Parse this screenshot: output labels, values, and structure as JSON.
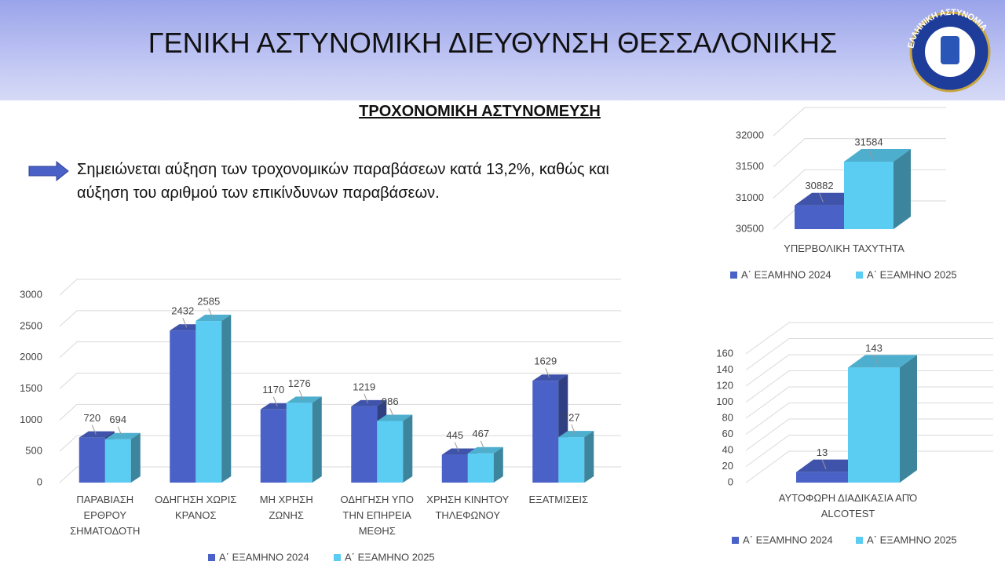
{
  "header": {
    "title": "ΓΕΝΙΚΗ ΑΣΤΥΝΟΜΙΚΗ ΔΙΕΥΘΥΝΣΗ ΘΕΣΣΑΛΟΝΙΚΗΣ"
  },
  "logo": {
    "text": "ΕΛΛΗΝΙΚΗ ΑΣΤΥΝΟΜΙΑ"
  },
  "subtitle": "ΤΡΟΧΟΝΟΜΙΚΗ ΑΣΤΥΝΟΜΕΥΣΗ",
  "bullet": "Σημειώνεται αύξηση των τροχονομικών παραβάσεων κατά 13,2%, καθώς και αύξηση του αριθμού των επικίνδυνων παραβάσεων.",
  "chart_data": [
    {
      "type": "bar",
      "categories": [
        "ΠΑΡΑΒΙΑΣΗ ΕΡΘΡΟΥ ΣΗΜΑΤΟΔΟΤΗ",
        "ΟΔΗΓΗΣΗ ΧΩΡΙΣ ΚΡΑΝΟΣ",
        "ΜΗ ΧΡΗΣΗ ΖΩΝΗΣ",
        "ΟΔΗΓΗΣΗ ΥΠΟ ΤΗΝ ΕΠΗΡΕΙΑ ΜΕΘΗΣ",
        "ΧΡΗΣΗ ΚΙΝΗΤΟΥ ΤΗΛΕΦΩΝΟΥ",
        "ΕΞΑΤΜΙΣΕΙΣ"
      ],
      "series": [
        {
          "name": "Α΄ ΕΞΑΜΗΝΟ 2024",
          "color": "#4a62c8",
          "values": [
            720,
            2432,
            1170,
            1219,
            445,
            1629
          ]
        },
        {
          "name": "Α΄ ΕΞΑΜΗΝΟ 2025",
          "color": "#5ccdf2",
          "values": [
            694,
            2585,
            1276,
            986,
            467,
            727
          ]
        }
      ],
      "ylim": [
        0,
        3000
      ],
      "yticks": [
        0,
        500,
        1000,
        1500,
        2000,
        2500,
        3000
      ],
      "grid": true,
      "legend": "bottom"
    },
    {
      "type": "bar",
      "categories": [
        "ΥΠΕΡΒΟΛΙΚΗ ΤΑΧΥΤΗΤΑ"
      ],
      "series": [
        {
          "name": "Α΄ ΕΞΑΜΗΝΟ 2024",
          "color": "#4a62c8",
          "values": [
            30882
          ]
        },
        {
          "name": "Α΄ ΕΞΑΜΗΝΟ 2025",
          "color": "#5ccdf2",
          "values": [
            31584
          ]
        }
      ],
      "ylim": [
        30500,
        32000
      ],
      "yticks": [
        30500,
        31000,
        31500,
        32000
      ],
      "grid": true,
      "legend": "bottom"
    },
    {
      "type": "bar",
      "categories": [
        "ΑΥΤΟΦΩΡΗ ΔΙΑΔΙΚΑΣΙΑ ΑΠΌ ALCOTEST"
      ],
      "series": [
        {
          "name": "Α΄ ΕΞΑΜΗΝΟ 2024",
          "color": "#4a62c8",
          "values": [
            13
          ]
        },
        {
          "name": "Α΄ ΕΞΑΜΗΝΟ 2025",
          "color": "#5ccdf2",
          "values": [
            143
          ]
        }
      ],
      "ylim": [
        0,
        160
      ],
      "yticks": [
        0,
        20,
        40,
        60,
        80,
        100,
        120,
        140,
        160
      ],
      "grid": true,
      "legend": "bottom"
    }
  ]
}
